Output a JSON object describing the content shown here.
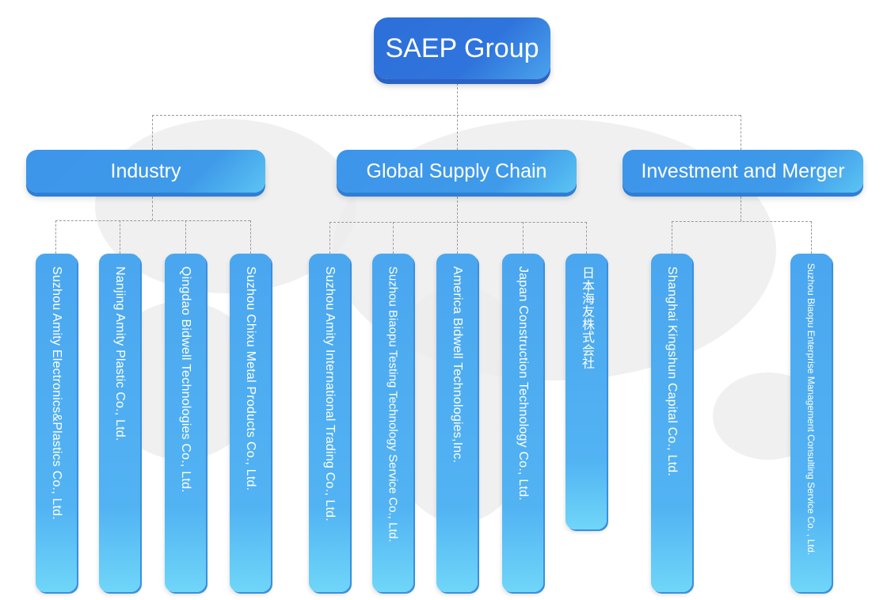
{
  "root": {
    "label": "SAEP Group"
  },
  "divisions": [
    {
      "label": "Industry",
      "companies": [
        "Suzhou Amity Electronics&Plastics Co., Ltd.",
        "Nanjing Amity Plastic Co., Ltd.",
        "Qingdao Bidwell Technologies Co., Ltd.",
        "Suzhou Chixu Metal Products Co., Ltd."
      ]
    },
    {
      "label": "Global Supply Chain",
      "companies": [
        "Suzhou Amity International Trading Co., Ltd.",
        "Suzhou Biaopu Testing Technology Service Co., Ltd.",
        "America Bidwell Technologies,Inc.",
        "Japan Construction Technology Co., Ltd.",
        "日本海友株式会社"
      ]
    },
    {
      "label": "Investment and Merger",
      "companies": [
        "Shanghai Kingshun Capital Co., Ltd.",
        "Suzhou Biaopu Enterprise Management Consulting Service  Co. , Ltd."
      ]
    }
  ],
  "colors": {
    "root": "#2f74dc",
    "division": "#3f9ae9",
    "company": "#52b3f3",
    "connector": "#9a9a9a"
  }
}
